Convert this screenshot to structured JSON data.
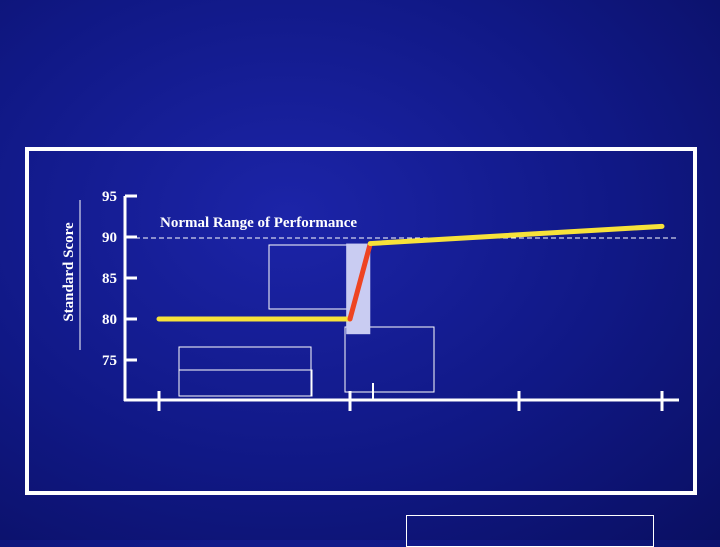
{
  "chart_data": {
    "type": "line",
    "ylabel": "Standard Score",
    "ylim": [
      74,
      97
    ],
    "y_ticks": [
      95,
      90,
      85,
      80,
      75
    ],
    "x_ticks_count": 4,
    "x": [
      0,
      1,
      1.13,
      3.0
    ],
    "series": [
      {
        "values": [
          80.0,
          80.0,
          null,
          null
        ],
        "color": "#f7e23a"
      },
      {
        "values": [
          null,
          80.0,
          89.2,
          null
        ],
        "color": "#ee4422"
      },
      {
        "values": [
          null,
          null,
          89.2,
          91.3
        ],
        "color": "#f7e23a"
      }
    ],
    "normal_range": {
      "label": "Normal Range of Performance",
      "value": 90
    },
    "highlight_band": {
      "x_start": 0.98,
      "x_end": 1.13,
      "color": "#c9ccf2"
    },
    "grid": false
  }
}
